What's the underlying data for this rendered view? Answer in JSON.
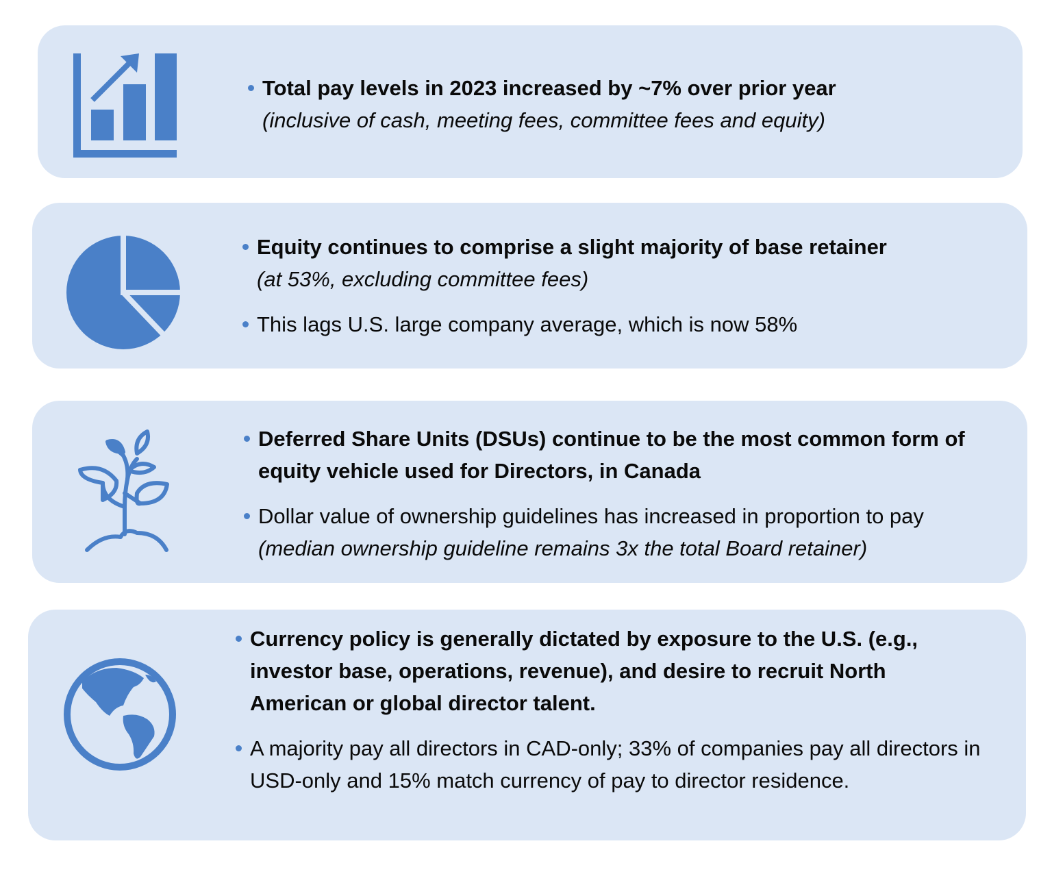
{
  "panels": [
    {
      "bullets": [
        [
          {
            "bold": "Total pay levels in 2023 increased by ~7% over prior year"
          },
          {
            "italic": "(inclusive of cash, meeting fees, committee fees and equity)"
          }
        ]
      ]
    },
    {
      "bullets": [
        [
          {
            "bold": "Equity continues to comprise a slight majority of base retainer"
          },
          {
            "italic": "(at 53%, excluding committee fees)"
          }
        ],
        [
          {
            "text": "This lags U.S. large company average, which is now 58%"
          }
        ]
      ]
    },
    {
      "bullets": [
        [
          {
            "bold": "Deferred Share Units (DSUs) continue to be the most common form of equity vehicle used for Directors, in Canada"
          }
        ],
        [
          {
            "text": "Dollar value of ownership guidelines has increased in proportion to pay"
          },
          {
            "italic": "(median ownership guideline remains 3x the total Board retainer)"
          }
        ]
      ]
    },
    {
      "bullets": [
        [
          {
            "bold": "Currency policy is generally dictated by exposure to the U.S. (e.g., investor base, operations, revenue), and desire to recruit North American or global director talent."
          }
        ],
        [
          {
            "text": "A majority pay all directors in CAD-only; 33% of companies pay all directors in USD-only and 15% match currency of pay to director residence."
          }
        ]
      ]
    }
  ]
}
